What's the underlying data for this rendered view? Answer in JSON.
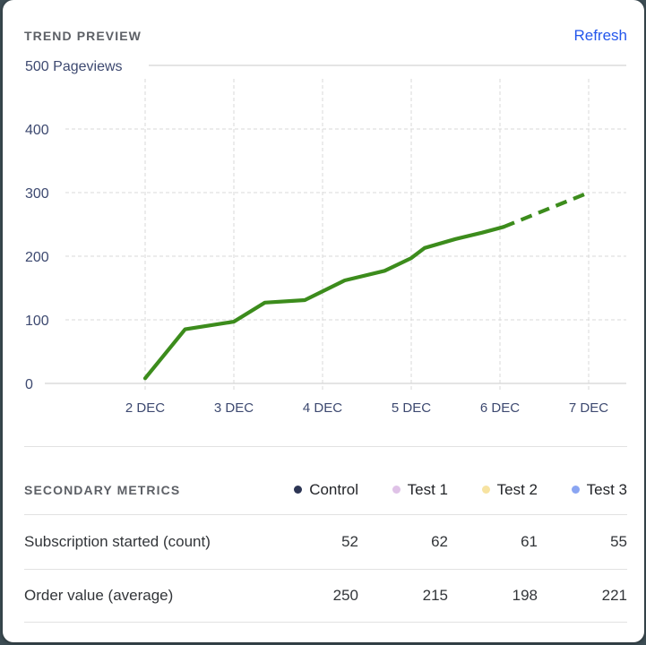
{
  "page_bg": "#3d4d54",
  "header": {
    "title": "TREND PREVIEW",
    "refresh_label": "Refresh",
    "refresh_color": "#2457ec"
  },
  "chart_data": {
    "type": "line",
    "title": "Trend preview",
    "y_axis_top_label": "500 Pageviews",
    "ylabel": "Pageviews",
    "ylim": [
      0,
      500
    ],
    "y_ticks": [
      400,
      300,
      200,
      100,
      0
    ],
    "x_ticks": [
      {
        "day": 2,
        "label": "2 DEC"
      },
      {
        "day": 3,
        "label": "3 DEC"
      },
      {
        "day": 4,
        "label": "4 DEC"
      },
      {
        "day": 5,
        "label": "5 DEC"
      },
      {
        "day": 6,
        "label": "6 DEC"
      },
      {
        "day": 7,
        "label": "7 DEC"
      }
    ],
    "grid": "dashed",
    "line_color": "#3c8c1c",
    "series": [
      {
        "name": "pageviews-actual",
        "style": "solid",
        "points": [
          [
            2,
            8
          ],
          [
            2.45,
            85
          ],
          [
            3,
            97
          ],
          [
            3.35,
            127
          ],
          [
            3.8,
            131
          ],
          [
            4.25,
            162
          ],
          [
            4.7,
            177
          ],
          [
            5,
            197
          ],
          [
            5.15,
            213
          ],
          [
            5.5,
            227
          ],
          [
            5.8,
            237
          ],
          [
            6.04,
            246
          ]
        ]
      },
      {
        "name": "pageviews-projected",
        "style": "dashed",
        "points": [
          [
            6.04,
            246
          ],
          [
            7,
            300
          ]
        ]
      }
    ]
  },
  "secondary": {
    "title": "SECONDARY METRICS",
    "legend": [
      {
        "label": "Control",
        "color": "#2c3554"
      },
      {
        "label": "Test 1",
        "color": "#dfc2e7"
      },
      {
        "label": "Test 2",
        "color": "#f7e3a1"
      },
      {
        "label": "Test 3",
        "color": "#8aa5f2"
      }
    ],
    "rows": [
      {
        "label": "Subscription started (count)",
        "values": [
          "52",
          "62",
          "61",
          "55"
        ]
      },
      {
        "label": "Order value (average)",
        "values": [
          "250",
          "215",
          "198",
          "221"
        ]
      }
    ]
  }
}
